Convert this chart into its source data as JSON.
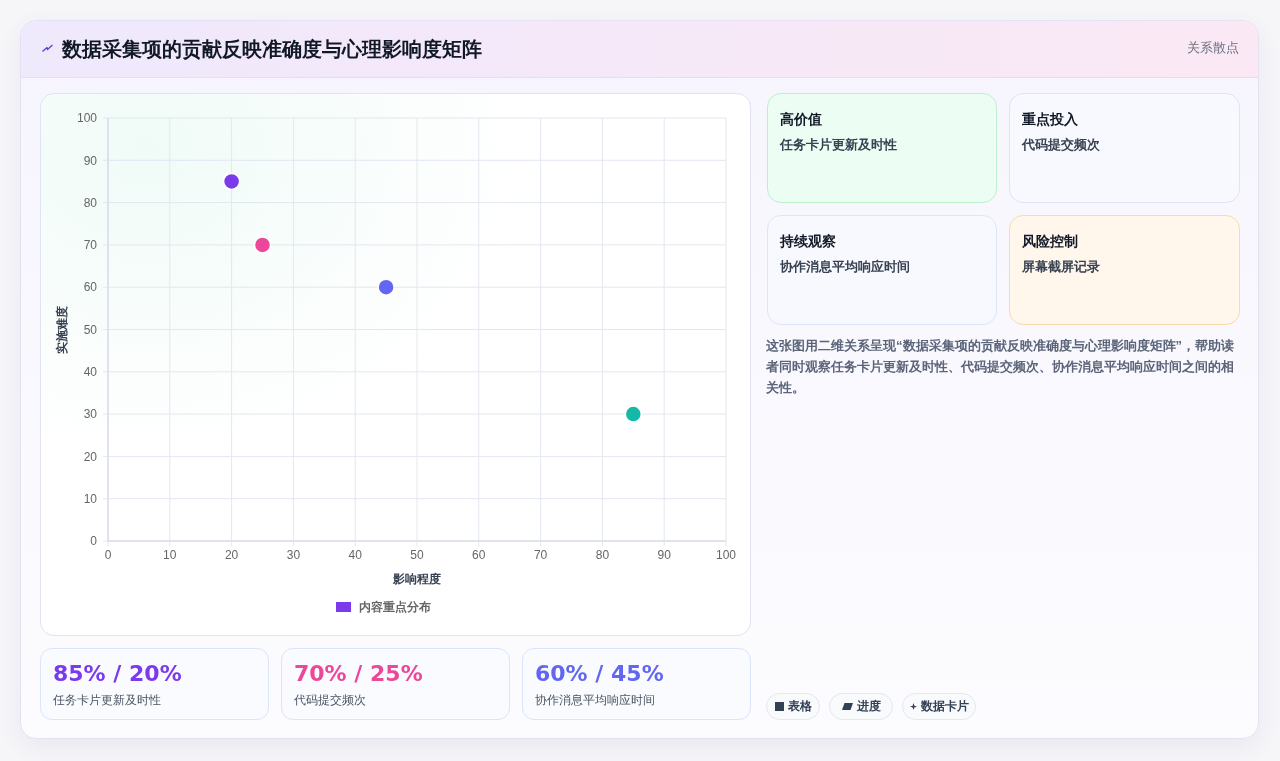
{
  "chart_data": {
    "type": "scatter",
    "title": "数据采集项的贡献反映准确度与心理影响度矩阵",
    "xlabel": "影响程度",
    "ylabel": "实施难度",
    "x": [
      20,
      25,
      45,
      85
    ],
    "series": [
      {
        "name": "内容重点分布",
        "color": "#7c3aed",
        "colors": [
          "#7c3aed",
          "#ec4899",
          "#6366f1",
          "#14b8a6"
        ],
        "values": [
          85,
          70,
          60,
          30
        ]
      }
    ],
    "xlim": [
      0,
      100
    ],
    "xticks": [
      0,
      10,
      20,
      30,
      40,
      50,
      60,
      70,
      80,
      90,
      100
    ],
    "ylim": [
      0,
      100
    ],
    "yticks": [
      0,
      10,
      20,
      30,
      40,
      50,
      60,
      70,
      80,
      90,
      100
    ],
    "grid": true,
    "legend": "bottom",
    "marker": "circle",
    "annotations": [
      "关系散点",
      "高价值",
      "任务卡片更新及时性",
      "重点投入",
      "代码提交频次",
      "持续观察",
      "协作消息平均响应时间",
      "风险控制",
      "屏幕截屏记录",
      "这张图用二维关系呈现“数据采集项的贡献反映准确度与心理影响度矩阵”，帮助读者同时观察任务卡片更新及时性、代码提交频次、协作消息平均响应时间之间的相关性。",
      "85% / 20%",
      "任务卡片更新及时性",
      "70% / 25%",
      "代码提交频次",
      "60% / 45%",
      "协作消息平均响应时间",
      "表格",
      "进度",
      "数据卡片"
    ]
  }
}
